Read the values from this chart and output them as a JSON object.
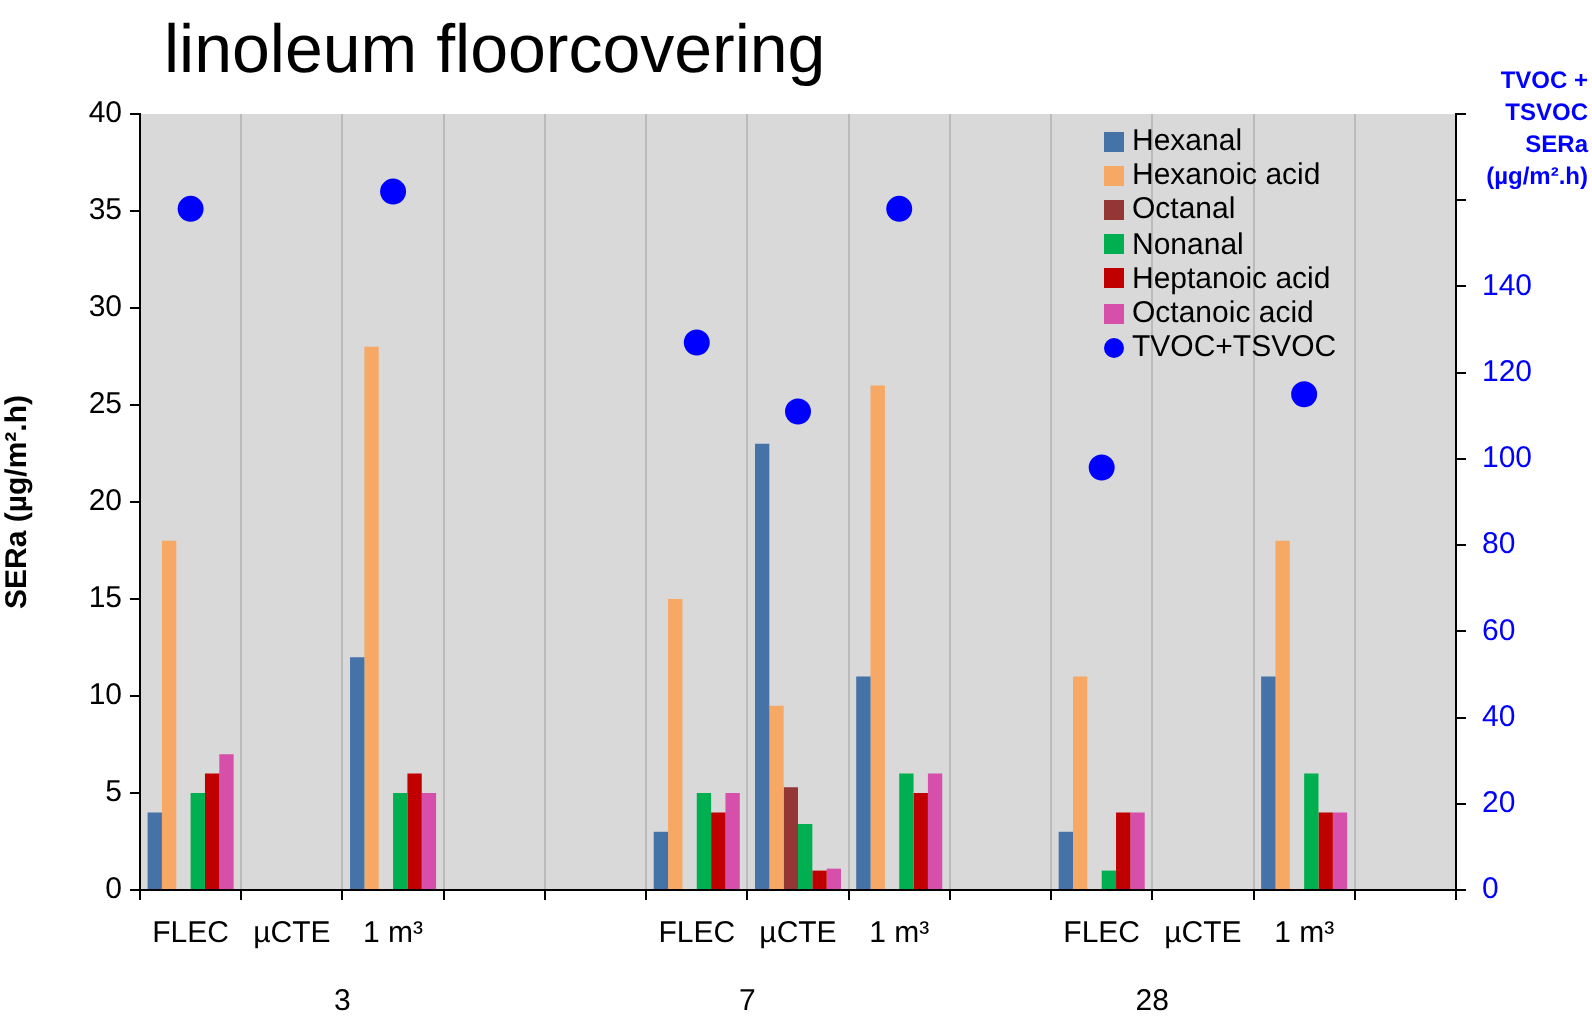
{
  "chart_data": {
    "type": "bar",
    "title": "linoleum floorcovering",
    "ylabel": "SERa (µg/m².h)",
    "y2label": "TVOC + TSVOC SERa (µg/m².h)",
    "categories": [
      "FLEC",
      "µCTE",
      "1 m³",
      null,
      null,
      "FLEC",
      "µCTE",
      "1 m³",
      null,
      "FLEC",
      "µCTE",
      "1 m³",
      null
    ],
    "annotations": [
      "3",
      "7",
      "28"
    ],
    "series": [
      {
        "name": "Hexanal",
        "color": "#4572a7",
        "values": [
          4,
          null,
          12,
          null,
          null,
          3,
          23,
          11,
          null,
          3,
          null,
          11,
          null
        ]
      },
      {
        "name": "Hexanoic acid",
        "color": "#f7a864",
        "values": [
          18,
          null,
          28,
          null,
          null,
          15,
          9.5,
          26,
          null,
          11,
          null,
          18,
          null
        ]
      },
      {
        "name": "Octanal",
        "color": "#943634",
        "values": [
          null,
          null,
          null,
          null,
          null,
          null,
          5.3,
          null,
          null,
          null,
          null,
          null,
          null
        ]
      },
      {
        "name": "Nonanal",
        "color": "#00b050",
        "values": [
          5,
          null,
          5,
          null,
          null,
          5,
          3.4,
          6,
          null,
          1,
          null,
          6,
          null
        ]
      },
      {
        "name": "Heptanoic acid",
        "color": "#c00000",
        "values": [
          6,
          null,
          6,
          null,
          null,
          4,
          1,
          5,
          null,
          4,
          null,
          4,
          null
        ]
      },
      {
        "name": "Octanoic acid",
        "color": "#d64fab",
        "values": [
          7,
          null,
          5,
          null,
          null,
          5,
          1.1,
          6,
          null,
          4,
          null,
          4,
          null
        ]
      },
      {
        "name": "TVOC+TSVOC",
        "type": "scatter",
        "axis": "y2",
        "color": "#0000ff",
        "values": [
          158,
          null,
          162,
          null,
          null,
          127,
          111,
          158,
          null,
          98,
          null,
          115,
          null
        ]
      }
    ],
    "ylim": [
      0,
      40
    ],
    "yticks": [
      0,
      5,
      10,
      15,
      20,
      25,
      30,
      35,
      40
    ],
    "y2lim": [
      0,
      180
    ],
    "y2ticks": [
      0,
      20,
      40,
      60,
      80,
      100,
      120,
      140,
      {
        "value": 160,
        "label": null
      },
      {
        "value": 180,
        "label": null
      }
    ],
    "grid": "x",
    "legend": "top right",
    "marker": "circle"
  }
}
